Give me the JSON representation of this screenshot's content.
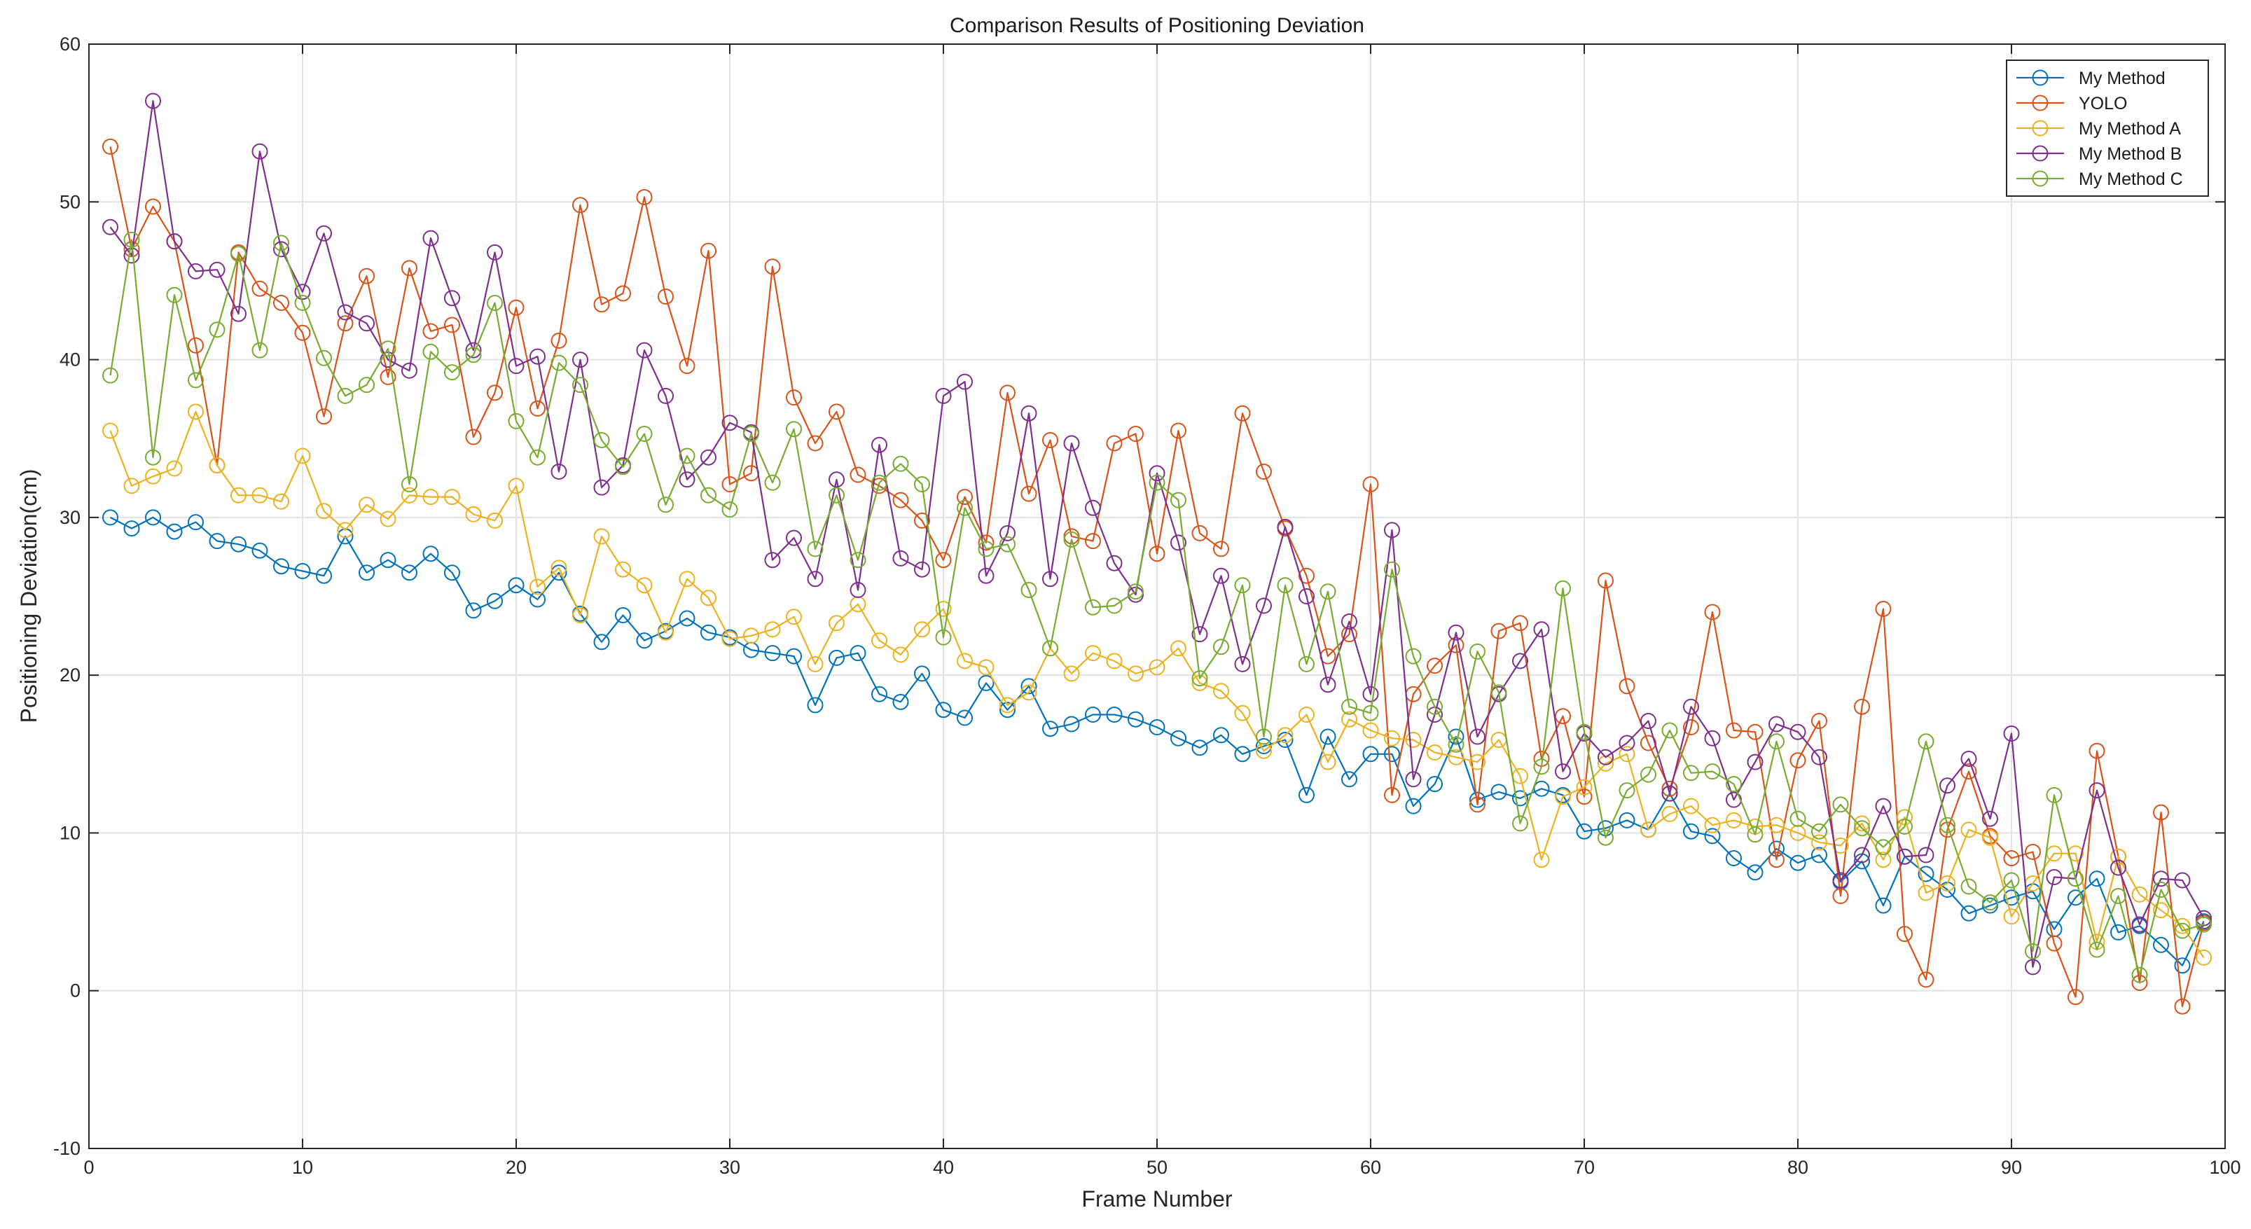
{
  "chart_data": {
    "type": "line",
    "title": "Comparison Results of Positioning Deviation",
    "xlabel": "Frame Number",
    "ylabel": "Positioning Deviation(cm)",
    "xlim": [
      0,
      100
    ],
    "ylim": [
      -10,
      60
    ],
    "xticks": [
      "0",
      "10",
      "20",
      "30",
      "40",
      "50",
      "60",
      "70",
      "80",
      "90",
      "100"
    ],
    "yticks": [
      "-10",
      "0",
      "10",
      "20",
      "30",
      "40",
      "50",
      "60"
    ],
    "grid": true,
    "legend_position": "top-right",
    "x": [
      1,
      2,
      3,
      4,
      5,
      6,
      7,
      8,
      9,
      10,
      11,
      12,
      13,
      14,
      15,
      16,
      17,
      18,
      19,
      20,
      21,
      22,
      23,
      24,
      25,
      26,
      27,
      28,
      29,
      30,
      31,
      32,
      33,
      34,
      35,
      36,
      37,
      38,
      39,
      40,
      41,
      42,
      43,
      44,
      45,
      46,
      47,
      48,
      49,
      50,
      51,
      52,
      53,
      54,
      55,
      56,
      57,
      58,
      59,
      60,
      61,
      62,
      63,
      64,
      65,
      66,
      67,
      68,
      69,
      70,
      71,
      72,
      73,
      74,
      75,
      76,
      77,
      78,
      79,
      80,
      81,
      82,
      83,
      84,
      85,
      86,
      87,
      88,
      89,
      90,
      91,
      92,
      93,
      94,
      95,
      96,
      97,
      98,
      99
    ],
    "series": [
      {
        "name": "My Method",
        "color": "#0072BD",
        "values": [
          30.0,
          29.3,
          30.0,
          29.1,
          29.7,
          28.5,
          28.3,
          27.9,
          26.9,
          26.6,
          26.3,
          28.8,
          26.5,
          27.3,
          26.5,
          27.7,
          26.5,
          24.1,
          24.7,
          25.7,
          24.8,
          26.5,
          23.9,
          22.1,
          23.8,
          22.2,
          22.8,
          23.6,
          22.7,
          22.4,
          21.6,
          21.4,
          21.2,
          18.1,
          21.1,
          21.4,
          18.8,
          18.3,
          20.1,
          17.8,
          17.3,
          19.5,
          17.8,
          19.3,
          16.6,
          16.9,
          17.5,
          17.5,
          17.2,
          16.7,
          16.0,
          15.4,
          16.2,
          15.0,
          15.5,
          15.9,
          12.4,
          16.1,
          13.4,
          15.0,
          15.0,
          11.7,
          13.1,
          16.1,
          12.1,
          12.6,
          12.2,
          12.8,
          12.4,
          10.1,
          10.3,
          10.8,
          10.2,
          12.5,
          10.1,
          9.8,
          8.4,
          7.5,
          9.0,
          8.1,
          8.6,
          6.9,
          8.2,
          5.4,
          8.5,
          7.4,
          6.4,
          4.9,
          5.4,
          5.9,
          6.3,
          3.9,
          5.9,
          7.1,
          3.7,
          4.1,
          2.9,
          1.6,
          4.4
        ]
      },
      {
        "name": "YOLO",
        "color": "#D95319",
        "values": [
          53.5,
          47.0,
          49.7,
          47.5,
          40.9,
          33.3,
          46.8,
          44.5,
          43.6,
          41.7,
          36.4,
          42.3,
          45.3,
          38.9,
          45.8,
          41.8,
          42.2,
          35.1,
          37.9,
          43.3,
          36.9,
          41.2,
          49.8,
          43.5,
          44.2,
          50.3,
          44.0,
          39.6,
          46.9,
          32.1,
          32.8,
          45.9,
          37.6,
          34.7,
          36.7,
          32.7,
          32.0,
          31.1,
          29.8,
          27.3,
          31.3,
          28.4,
          37.9,
          31.5,
          34.9,
          28.8,
          28.5,
          34.7,
          35.3,
          27.7,
          35.5,
          29.0,
          28.0,
          36.6,
          32.9,
          29.3,
          26.3,
          21.2,
          22.6,
          32.1,
          12.4,
          18.8,
          20.6,
          21.9,
          11.8,
          22.8,
          23.3,
          14.7,
          17.4,
          12.3,
          26.0,
          19.3,
          15.7,
          12.8,
          16.7,
          24.0,
          16.5,
          16.4,
          8.3,
          14.6,
          17.1,
          6.0,
          18.0,
          24.2,
          3.6,
          0.7,
          10.2,
          13.9,
          9.8,
          8.4,
          8.8,
          3.0,
          -0.4,
          15.2,
          8.5,
          0.5,
          11.3,
          -1.0,
          4.3
        ]
      },
      {
        "name": "My Method A",
        "color": "#EDB120",
        "values": [
          35.5,
          32.0,
          32.6,
          33.1,
          36.7,
          33.3,
          31.4,
          31.4,
          31.0,
          33.9,
          30.4,
          29.2,
          30.8,
          29.9,
          31.4,
          31.3,
          31.3,
          30.2,
          29.8,
          32.0,
          25.6,
          26.8,
          23.8,
          28.8,
          26.7,
          25.7,
          22.7,
          26.1,
          24.9,
          22.3,
          22.5,
          22.9,
          23.7,
          20.7,
          23.3,
          24.5,
          22.2,
          21.3,
          22.9,
          24.2,
          20.9,
          20.5,
          18.1,
          18.9,
          21.7,
          20.1,
          21.4,
          20.9,
          20.1,
          20.5,
          21.7,
          19.5,
          19.0,
          17.6,
          15.2,
          16.2,
          17.5,
          14.5,
          17.2,
          16.5,
          16.0,
          15.9,
          15.1,
          14.8,
          14.5,
          15.9,
          13.6,
          8.3,
          12.3,
          12.9,
          14.4,
          15.0,
          10.2,
          11.2,
          11.7,
          10.5,
          10.8,
          10.4,
          10.5,
          10.0,
          9.4,
          9.2,
          10.6,
          8.3,
          11.0,
          6.2,
          6.8,
          10.2,
          9.7,
          4.7,
          6.8,
          8.7,
          8.7,
          3.1,
          8.5,
          6.1,
          5.1,
          4.1,
          2.1
        ]
      },
      {
        "name": "My Method B",
        "color": "#7E2F8E",
        "values": [
          48.4,
          46.6,
          56.4,
          47.5,
          45.6,
          45.7,
          42.9,
          53.2,
          47.0,
          44.3,
          48.0,
          43.0,
          42.3,
          40.0,
          39.3,
          47.7,
          43.9,
          40.6,
          46.8,
          39.6,
          40.2,
          32.9,
          40.0,
          31.9,
          33.3,
          40.6,
          37.7,
          32.4,
          33.8,
          36.0,
          35.4,
          27.3,
          28.7,
          26.1,
          32.4,
          25.4,
          34.6,
          27.4,
          26.7,
          37.7,
          38.6,
          26.3,
          29.0,
          36.6,
          26.1,
          34.7,
          30.6,
          27.1,
          25.1,
          32.8,
          28.4,
          22.6,
          26.3,
          20.7,
          24.4,
          29.4,
          25.0,
          19.4,
          23.4,
          18.8,
          29.2,
          13.4,
          17.5,
          22.7,
          16.1,
          18.8,
          20.9,
          22.9,
          13.9,
          16.3,
          14.8,
          15.7,
          17.1,
          12.5,
          18.0,
          16.0,
          12.1,
          14.5,
          16.9,
          16.4,
          14.8,
          7.0,
          8.6,
          11.7,
          8.5,
          8.6,
          13.0,
          14.7,
          10.9,
          16.3,
          1.5,
          7.2,
          7.1,
          12.7,
          7.8,
          4.2,
          7.1,
          7.0,
          4.6
        ]
      },
      {
        "name": "My Method C",
        "color": "#77AC30",
        "values": [
          39.0,
          47.6,
          33.8,
          44.1,
          38.7,
          41.9,
          46.7,
          40.6,
          47.4,
          43.6,
          40.1,
          37.7,
          38.4,
          40.7,
          32.1,
          40.5,
          39.2,
          40.3,
          43.6,
          36.1,
          33.8,
          39.8,
          38.4,
          34.9,
          33.2,
          35.3,
          30.8,
          33.9,
          31.4,
          30.5,
          35.3,
          32.2,
          35.6,
          28.0,
          31.4,
          27.3,
          32.2,
          33.4,
          32.1,
          22.4,
          30.6,
          28.0,
          28.3,
          25.4,
          21.7,
          28.6,
          24.3,
          24.4,
          25.3,
          32.2,
          31.1,
          19.8,
          21.8,
          25.7,
          16.1,
          25.7,
          20.7,
          25.3,
          18.0,
          17.6,
          26.7,
          21.2,
          18.0,
          15.6,
          21.5,
          18.9,
          10.6,
          14.2,
          25.5,
          16.4,
          9.7,
          12.7,
          13.7,
          16.5,
          13.8,
          13.9,
          13.1,
          9.9,
          15.8,
          10.9,
          10.1,
          11.8,
          10.3,
          9.1,
          10.4,
          15.8,
          10.5,
          6.6,
          5.6,
          7.0,
          2.5,
          12.4,
          7.1,
          2.6,
          6.0,
          1.0,
          6.4,
          3.8,
          4.2
        ]
      }
    ]
  }
}
